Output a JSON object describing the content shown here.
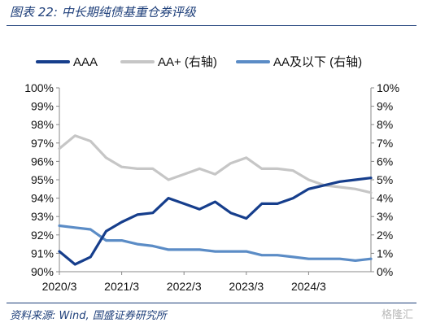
{
  "header": {
    "title": "图表 22: 中长期纯债基重仓券评级"
  },
  "footer": {
    "source": "资料来源: Wind, 国盛证券研究所",
    "watermark": "格隆汇"
  },
  "colors": {
    "aaa": "#163e8c",
    "aa_plus": "#c6c6c6",
    "aa_below": "#5b8cc6",
    "rule": "#1e3f7a"
  },
  "chart_data": {
    "type": "line",
    "x": [
      "2020/3",
      "2020/6",
      "2020/9",
      "2020/12",
      "2021/3",
      "2021/6",
      "2021/9",
      "2021/12",
      "2022/3",
      "2022/6",
      "2022/9",
      "2022/12",
      "2023/3",
      "2023/6",
      "2023/9",
      "2023/12",
      "2024/3",
      "2024/6",
      "2024/9",
      "2024/12",
      "2025/3"
    ],
    "xticks": [
      "2020/3",
      "2021/3",
      "2022/3",
      "2023/3",
      "2024/3"
    ],
    "left_axis": {
      "ylim": [
        90,
        100
      ],
      "ticks": [
        "90%",
        "91%",
        "92%",
        "93%",
        "94%",
        "95%",
        "96%",
        "97%",
        "98%",
        "99%",
        "100%"
      ]
    },
    "right_axis": {
      "ylim": [
        0,
        10
      ],
      "ticks": [
        "0%",
        "1%",
        "2%",
        "3%",
        "4%",
        "5%",
        "6%",
        "7%",
        "8%",
        "9%",
        "10%"
      ]
    },
    "grid": false,
    "legend_position": "top",
    "series": [
      {
        "name": "AAA",
        "axis": "left",
        "values": [
          91.1,
          90.4,
          90.8,
          92.2,
          92.7,
          93.1,
          93.2,
          94.0,
          93.7,
          93.4,
          93.8,
          93.2,
          92.9,
          93.7,
          93.7,
          94.0,
          94.5,
          94.7,
          94.9,
          95.0,
          95.1
        ]
      },
      {
        "name": "AA+ (右轴)",
        "axis": "right",
        "values": [
          6.7,
          7.4,
          7.1,
          6.2,
          5.7,
          5.6,
          5.6,
          5.0,
          5.3,
          5.6,
          5.3,
          5.9,
          6.2,
          5.6,
          5.6,
          5.5,
          5.0,
          4.7,
          4.6,
          4.5,
          4.3
        ]
      },
      {
        "name": "AA及以下 (右轴)",
        "axis": "right",
        "values": [
          2.5,
          2.4,
          2.3,
          1.7,
          1.7,
          1.5,
          1.4,
          1.2,
          1.2,
          1.2,
          1.1,
          1.1,
          1.1,
          0.9,
          0.9,
          0.8,
          0.7,
          0.7,
          0.7,
          0.6,
          0.7
        ]
      }
    ]
  }
}
